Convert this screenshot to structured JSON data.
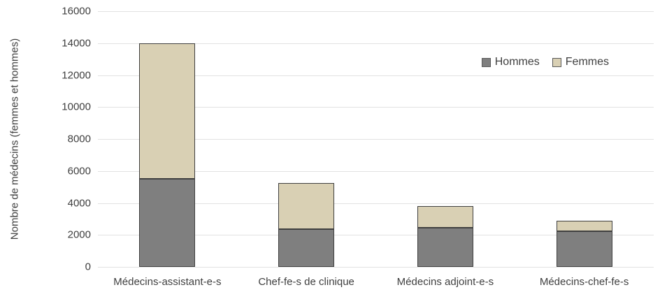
{
  "chart_data": {
    "type": "bar",
    "stacked": true,
    "title": "",
    "xlabel": "",
    "ylabel": "Nombre de médecins (femmes et hommes)",
    "categories": [
      "Médecins-assistant-e-s",
      "Chef-fe-s de clinique",
      "Médecins adjoint-e-s",
      "Médecins-chef-fe-s"
    ],
    "series": [
      {
        "name": "Hommes",
        "color": "#7f7f7f",
        "values": [
          5500,
          2350,
          2450,
          2250
        ]
      },
      {
        "name": "Femmes",
        "color": "#d9d0b4",
        "values": [
          8500,
          2900,
          1350,
          650
        ]
      }
    ],
    "totals": [
      14000,
      5250,
      3800,
      2900
    ],
    "ylim": [
      0,
      16000
    ],
    "ytick_step": 2000,
    "yticks": [
      "0",
      "2000",
      "4000",
      "6000",
      "8000",
      "10000",
      "12000",
      "14000",
      "16000"
    ],
    "grid": true,
    "legend_position": "top-right",
    "colors": {
      "bar_border": "#404040",
      "gridline": "#e2e2e2",
      "text": "#3f3f3f",
      "background": "#ffffff"
    }
  }
}
